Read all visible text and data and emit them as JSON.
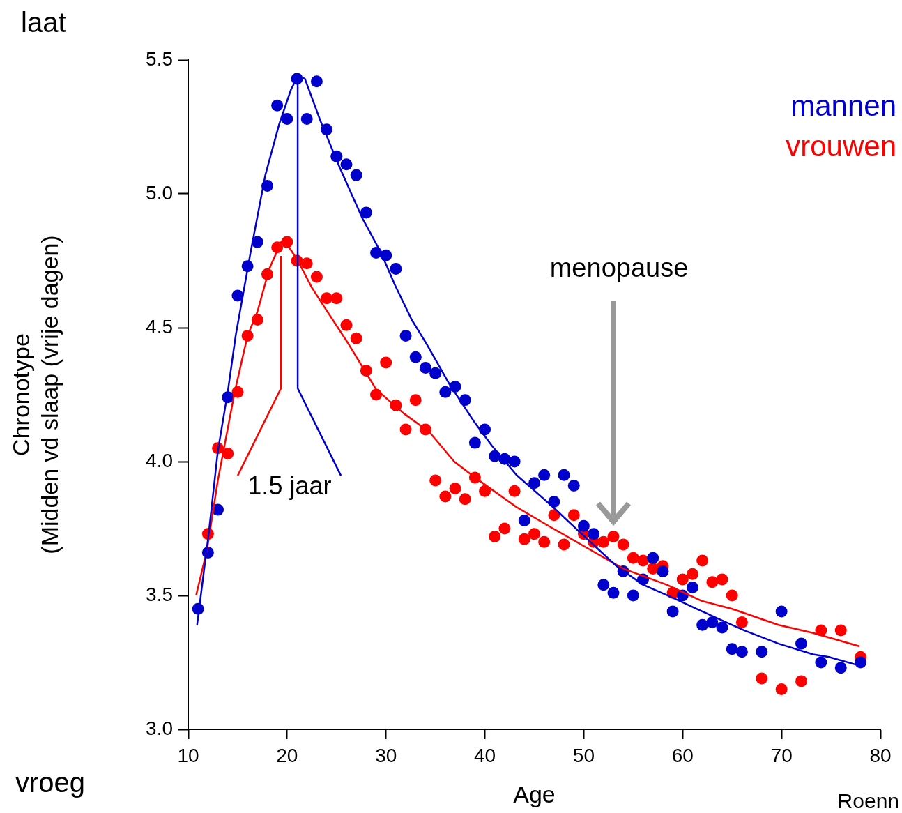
{
  "chart_data": {
    "type": "scatter",
    "xlabel": "Age",
    "ylabel": "Chronotype\n(Midden vd slaap (vrije dagen)",
    "xlim": [
      10,
      80
    ],
    "xticks": [
      10,
      20,
      30,
      40,
      50,
      60,
      70,
      80
    ],
    "ylim": [
      3.0,
      5.5
    ],
    "yticks": [
      {
        "value": 3.0,
        "label": "3.0"
      },
      {
        "value": 3.5,
        "label": "3.5"
      },
      {
        "value": 4.0,
        "label": "4.0"
      },
      {
        "value": 4.5,
        "label": "4.5"
      },
      {
        "value": 5.0,
        "label": "5.0"
      },
      {
        "value": 5.5,
        "label": "5.5"
      }
    ],
    "grid": false,
    "legend": "top right",
    "marker": "circle",
    "annotations": [
      "laat",
      "vroeg",
      "1.5 jaar",
      "menopause",
      "Roenn"
    ],
    "series": [
      {
        "name": "mannen",
        "type": "scatter",
        "color": "#0000cc",
        "x": [
          11,
          12,
          13,
          14,
          15,
          16,
          17,
          18,
          19,
          20,
          21,
          22,
          23,
          24,
          25,
          26,
          27,
          28,
          29,
          30,
          31,
          32,
          33,
          34,
          35,
          36,
          37,
          38,
          39,
          40,
          41,
          42,
          43,
          44,
          45,
          46,
          47,
          48,
          49,
          50,
          51,
          52,
          53,
          54,
          55,
          56,
          57,
          58,
          59,
          60,
          61,
          62,
          63,
          64,
          65,
          66,
          68,
          70,
          72,
          74,
          76,
          78
        ],
        "values": [
          3.45,
          3.66,
          3.82,
          4.24,
          4.62,
          4.73,
          4.82,
          5.03,
          5.33,
          5.28,
          5.43,
          5.28,
          5.42,
          5.24,
          5.14,
          5.11,
          5.07,
          4.93,
          4.78,
          4.77,
          4.72,
          4.47,
          4.39,
          4.35,
          4.33,
          4.26,
          4.28,
          4.23,
          4.07,
          4.12,
          4.02,
          4.01,
          4.0,
          3.78,
          3.92,
          3.95,
          3.85,
          3.95,
          3.91,
          3.76,
          3.73,
          3.54,
          3.51,
          3.59,
          3.5,
          3.56,
          3.64,
          3.59,
          3.44,
          3.5,
          3.53,
          3.39,
          3.4,
          3.38,
          3.3,
          3.29,
          3.29,
          3.44,
          3.32,
          3.25,
          3.23,
          3.25
        ]
      },
      {
        "name": "vrouwen",
        "type": "scatter",
        "color": "#ff0000",
        "x": [
          12,
          13,
          14,
          15,
          16,
          17,
          18,
          19,
          20,
          21,
          22,
          23,
          24,
          25,
          26,
          27,
          28,
          29,
          30,
          31,
          32,
          33,
          34,
          35,
          36,
          37,
          38,
          39,
          40,
          41,
          42,
          43,
          44,
          45,
          46,
          47,
          48,
          49,
          50,
          51,
          52,
          53,
          54,
          55,
          56,
          57,
          58,
          59,
          60,
          61,
          62,
          63,
          64,
          65,
          66,
          68,
          70,
          72,
          74,
          76,
          78
        ],
        "values": [
          3.73,
          4.05,
          4.03,
          4.26,
          4.47,
          4.53,
          4.7,
          4.8,
          4.82,
          4.75,
          4.74,
          4.69,
          4.61,
          4.61,
          4.51,
          4.46,
          4.34,
          4.25,
          4.37,
          4.21,
          4.12,
          4.23,
          4.12,
          3.93,
          3.87,
          3.9,
          3.86,
          3.94,
          3.89,
          3.72,
          3.75,
          3.89,
          3.71,
          3.73,
          3.7,
          3.8,
          3.69,
          3.8,
          3.73,
          3.7,
          3.7,
          3.72,
          3.69,
          3.64,
          3.63,
          3.6,
          3.61,
          3.51,
          3.56,
          3.58,
          3.63,
          3.55,
          3.56,
          3.5,
          3.4,
          3.19,
          3.15,
          3.18,
          3.37,
          3.37,
          3.27
        ]
      },
      {
        "type": "line",
        "marker": "none",
        "color": "#0000cc",
        "x": [
          10.9,
          12.1,
          13.0,
          14.0,
          14.8,
          16.3,
          17.8,
          19.2,
          20.4,
          21.1,
          21.8,
          23.4,
          25.3,
          27.6,
          29.5,
          30.9,
          32.6,
          34.1,
          36.4,
          38.9,
          40.7,
          43.2,
          46.9,
          49.5,
          53.3,
          56.0,
          59.1,
          61.4,
          63.8,
          66.2,
          69.7,
          73.2,
          74.8,
          77.7
        ],
        "values": [
          3.39,
          3.74,
          4.04,
          4.26,
          4.47,
          4.78,
          5.07,
          5.26,
          5.39,
          5.44,
          5.43,
          5.27,
          5.1,
          4.91,
          4.78,
          4.66,
          4.53,
          4.44,
          4.29,
          4.15,
          4.06,
          3.95,
          3.83,
          3.74,
          3.61,
          3.54,
          3.49,
          3.45,
          3.41,
          3.37,
          3.32,
          3.28,
          3.27,
          3.24
        ]
      },
      {
        "type": "line",
        "marker": "none",
        "color": "#ff0000",
        "x": [
          10.8,
          11.9,
          13.0,
          14.7,
          16.0,
          17.0,
          18.2,
          19.4,
          20.2,
          21.1,
          22.5,
          23.9,
          26.2,
          29.0,
          31.8,
          34.4,
          36.9,
          39.4,
          43.2,
          46.9,
          50.7,
          54.0,
          58.4,
          61.9,
          65.0,
          69.7,
          73.2,
          77.9
        ],
        "values": [
          3.5,
          3.67,
          3.93,
          4.26,
          4.47,
          4.56,
          4.72,
          4.82,
          4.8,
          4.75,
          4.65,
          4.57,
          4.44,
          4.27,
          4.18,
          4.11,
          4.0,
          3.93,
          3.83,
          3.75,
          3.67,
          3.6,
          3.54,
          3.48,
          3.45,
          3.39,
          3.36,
          3.31
        ]
      }
    ]
  }
}
